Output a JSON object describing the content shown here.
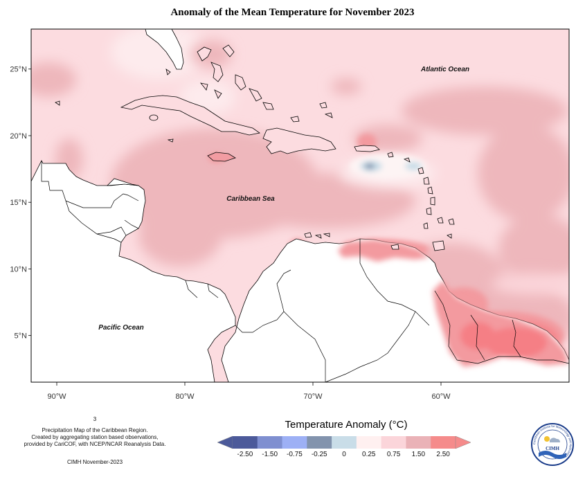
{
  "title": "Anomaly of the Mean Temperature for November 2023",
  "map": {
    "lon_range": [
      -92,
      -50
    ],
    "lat_range": [
      1.5,
      28
    ],
    "lon_ticks": [
      "90°W",
      "80°W",
      "70°W",
      "60°W"
    ],
    "lat_ticks": [
      "25°N",
      "20°N",
      "15°N",
      "10°N",
      "5°N"
    ],
    "labels": {
      "atlantic": "Atlantic Ocean",
      "caribbean": "Caribbean Sea",
      "pacific": "Pacific Ocean"
    }
  },
  "legend": {
    "title": "Temperature Anomaly (°C)",
    "ticks": [
      "-2.50",
      "-1.50",
      "-0.75",
      "-0.25",
      "0",
      "0.25",
      "0.75",
      "1.50",
      "2.50"
    ],
    "colors": [
      "#4c5a9a",
      "#7f8fd0",
      "#9db0f5",
      "#8293ad",
      "#c9dde8",
      "#fff0f0",
      "#fbd5da",
      "#eab2b7",
      "#f58b8b"
    ]
  },
  "footnote": {
    "marker": "3",
    "line1": "Precipitation Map of the Caribbean Region.",
    "line2": "Created by aggregating station based observations,",
    "line3": "provided by CariCOF, with NCEP/NCAR Reanalysis Data.",
    "credit": "CIMH November-2023"
  },
  "logo": {
    "text": "CIMH",
    "ring_text": "Caribbean Institute for Meteorology and Hydrology"
  }
}
